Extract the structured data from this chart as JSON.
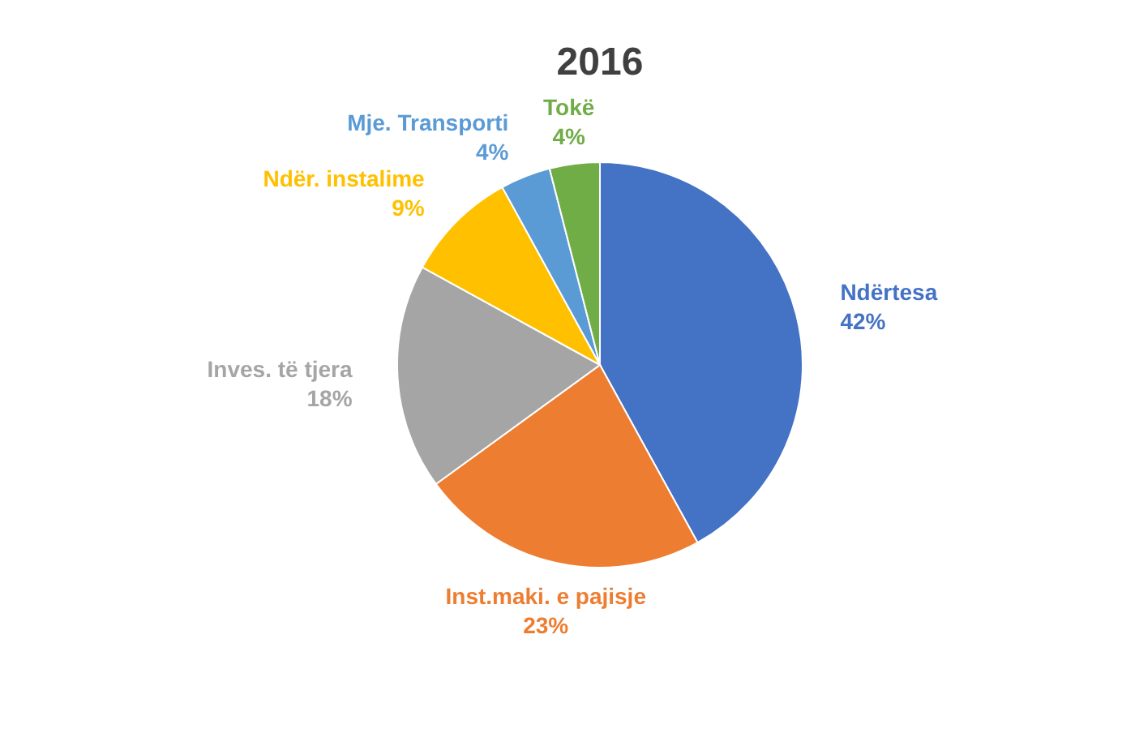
{
  "chart_data": {
    "type": "pie",
    "title": "2016",
    "categories": [
      "Ndërtesa",
      "Inst.maki. e pajisje",
      "Inves. të tjera",
      "Ndër. instalime",
      "Mje. Transporti",
      "Tokë"
    ],
    "values": [
      42,
      23,
      18,
      9,
      4,
      4
    ],
    "colors": [
      "#4472c4",
      "#ed7d31",
      "#a5a5a5",
      "#ffc000",
      "#5b9bd5",
      "#70ad47"
    ],
    "value_labels": [
      "42%",
      "23%",
      "18%",
      "9%",
      "4%",
      "4%"
    ]
  }
}
